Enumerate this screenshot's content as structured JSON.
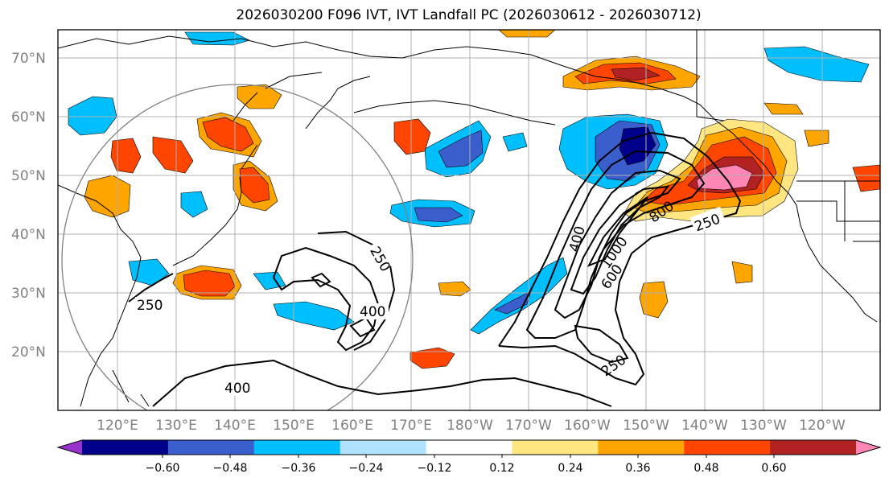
{
  "title": "2026030200 F096 IVT, IVT Landfall PC (2026030612 - 2026030712)",
  "map": {
    "projection": "PlateCarree (central longitude ~180)",
    "lon_range": [
      "110°E",
      "115°W"
    ],
    "lat_range": [
      "10°N",
      "75°N"
    ],
    "lat_labels": [
      "70°N",
      "60°N",
      "50°N",
      "40°N",
      "30°N",
      "20°N"
    ],
    "lon_labels": [
      "120°E",
      "130°E",
      "140°E",
      "150°E",
      "160°E",
      "170°E",
      "180°W",
      "170°W",
      "160°W",
      "150°W",
      "140°W",
      "130°W",
      "120°W"
    ],
    "fill_variable": "IVT Landfall PC",
    "contour_variable": "IVT"
  },
  "contour_labels": [
    "250",
    "400",
    "250",
    "400",
    "400",
    "1000",
    "600",
    "800",
    "250",
    "250"
  ],
  "colorbar": {
    "ticks": [
      "−0.60",
      "−0.48",
      "−0.36",
      "−0.24",
      "−0.12",
      "0.12",
      "0.24",
      "0.36",
      "0.48",
      "0.60"
    ],
    "colors": [
      "#9932cc",
      "#00008b",
      "#3a5fcd",
      "#00bfff",
      "#b0e2ff",
      "#ffffff",
      "#ffe680",
      "#ffa500",
      "#ff4500",
      "#b22222",
      "#ff86b4"
    ],
    "extend": "both"
  }
}
